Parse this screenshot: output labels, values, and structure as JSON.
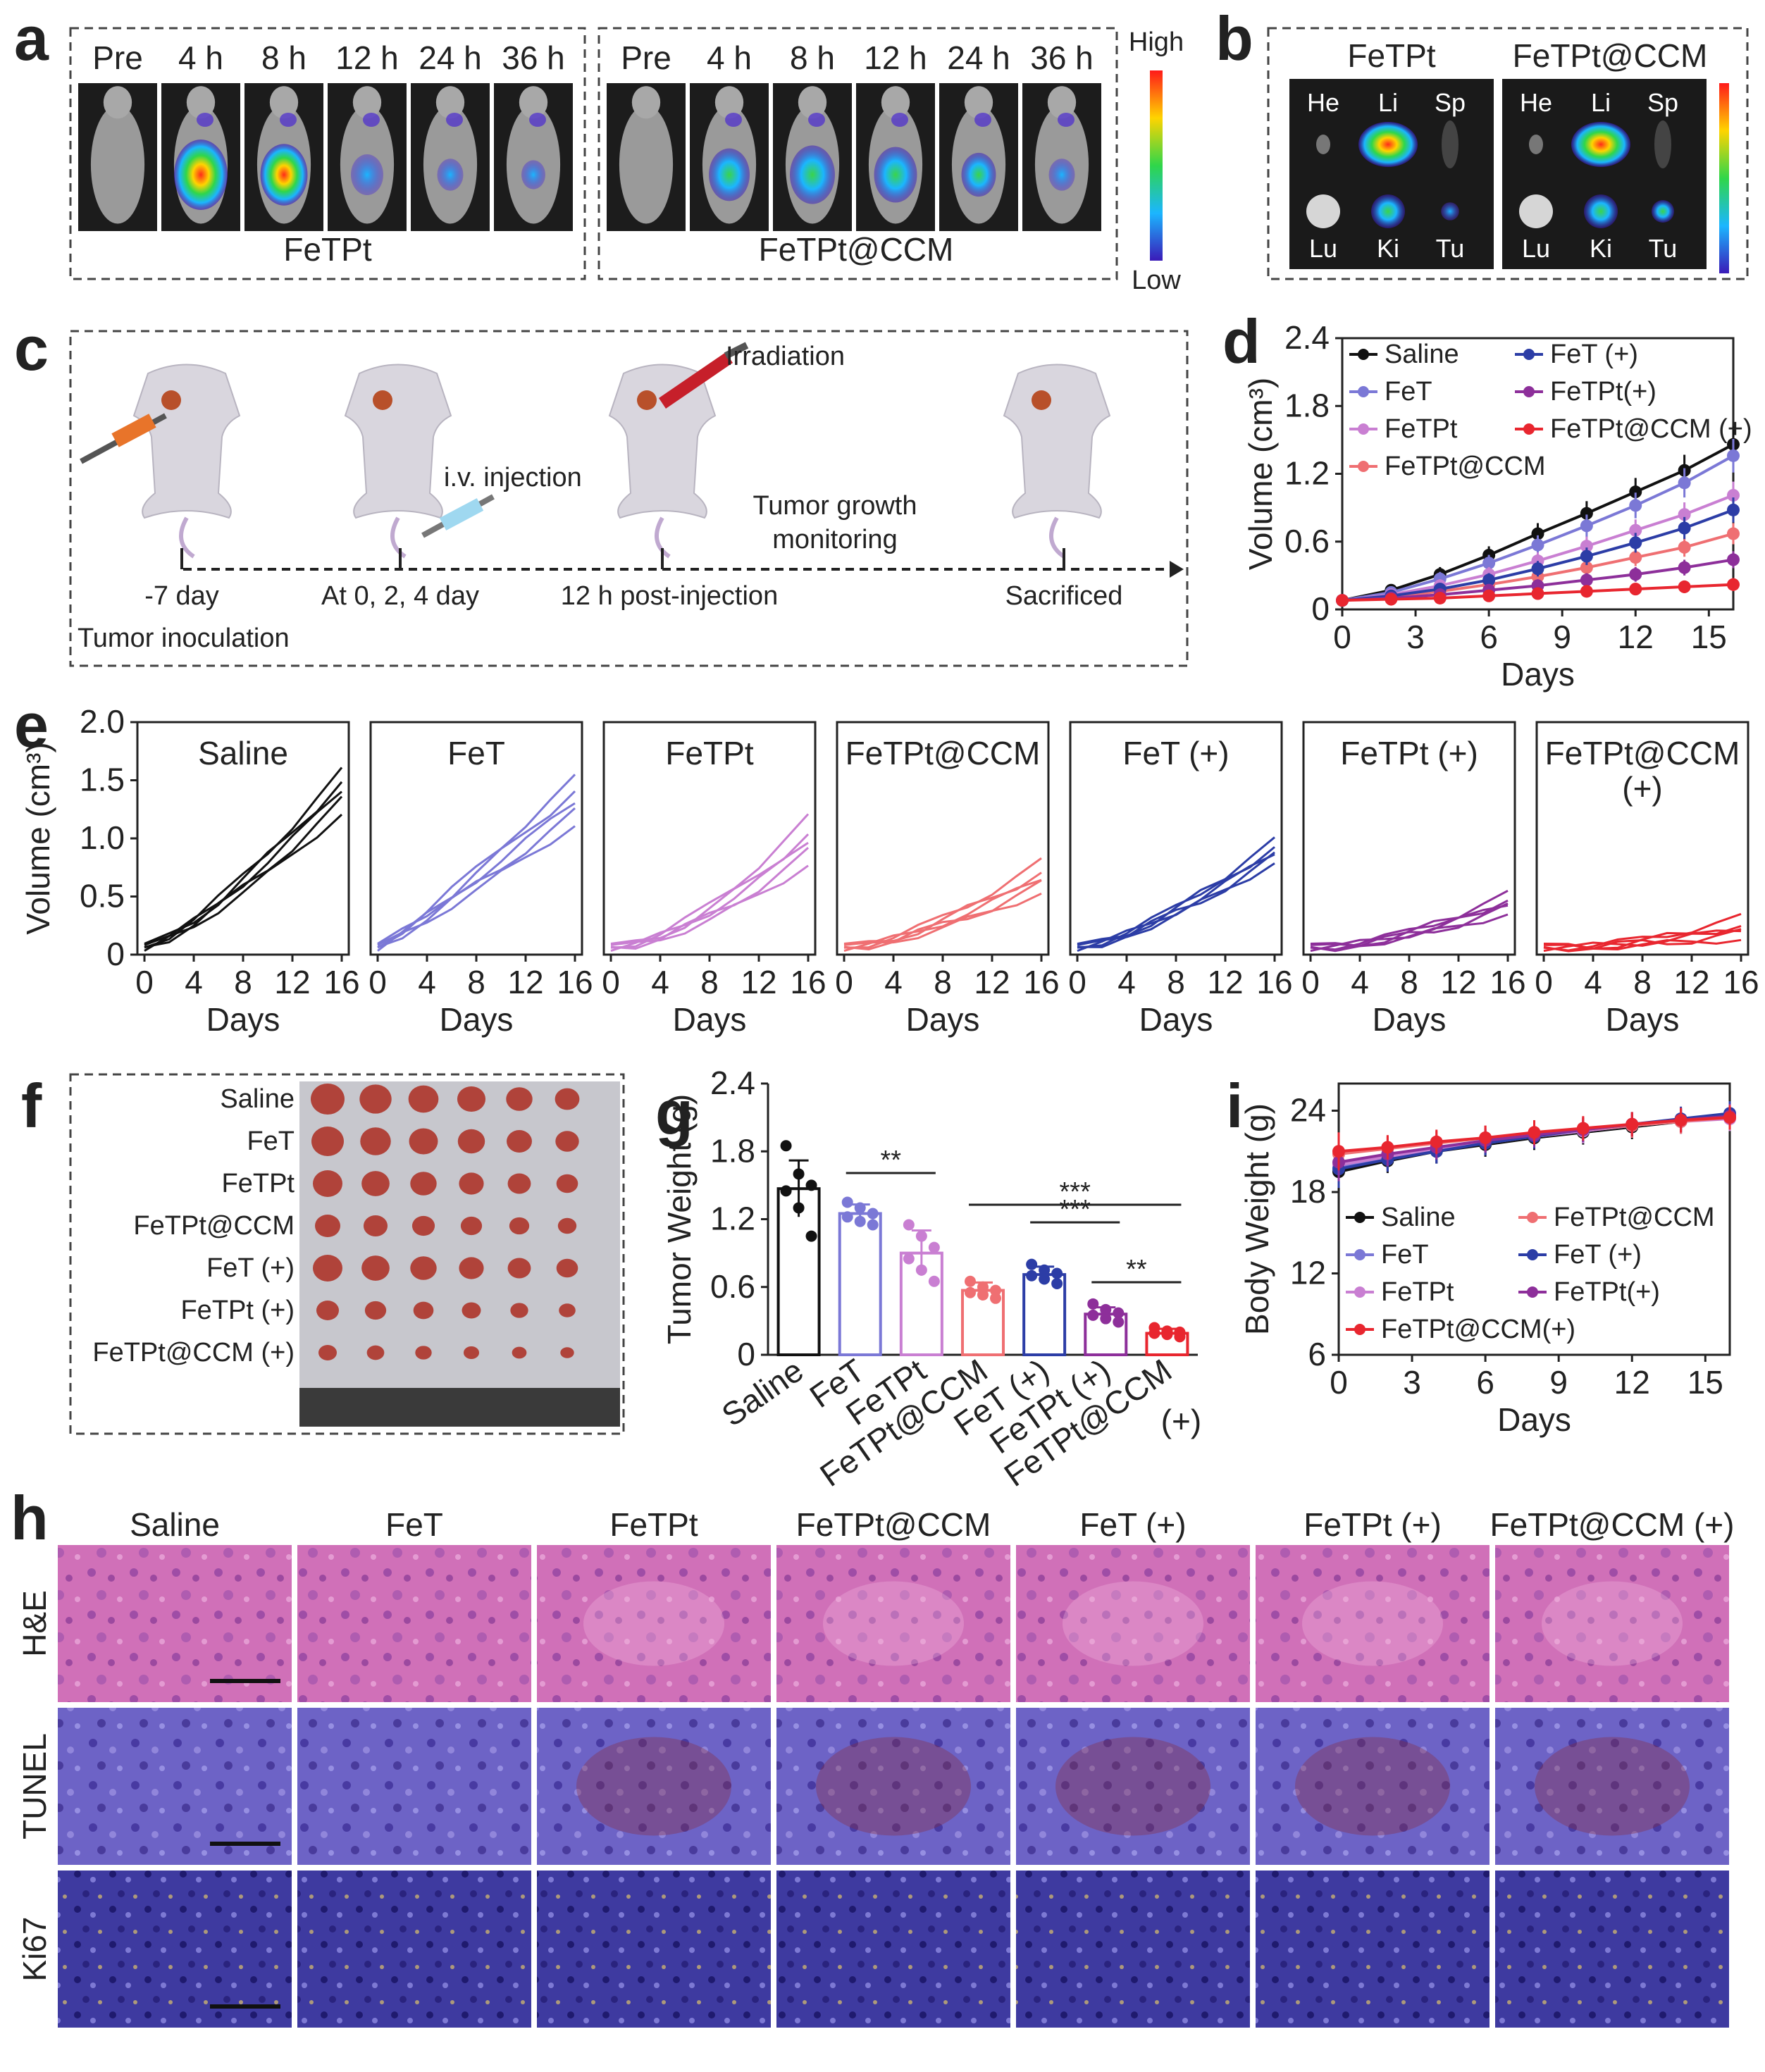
{
  "panel_letters": {
    "a": "a",
    "b": "b",
    "c": "c",
    "d": "d",
    "e": "e",
    "f": "f",
    "g": "g",
    "h": "h",
    "i": "i"
  },
  "panel_a": {
    "timepoints": [
      "Pre",
      "4 h",
      "8 h",
      "12 h",
      "24 h",
      "36 h"
    ],
    "group_left": "FeTPt",
    "group_right": "FeTPt@CCM",
    "scale_high": "High",
    "scale_low": "Low"
  },
  "panel_b": {
    "left_title": "FeTPt",
    "right_title": "FeTPt@CCM",
    "organs_top": [
      "He",
      "Li",
      "Sp"
    ],
    "organs_bottom": [
      "Lu",
      "Ki",
      "Tu"
    ]
  },
  "panel_c": {
    "irradiation": "Irradiation",
    "injection": "i.v. injection",
    "monitor_line1": "Tumor  growth",
    "monitor_line2": "monitoring",
    "timeline": [
      "-7 day",
      "At 0, 2, 4 day",
      "12 h post-injection",
      "Sacrificed"
    ],
    "inoculation": "Tumor  inoculation"
  },
  "panel_f": {
    "rows": [
      "Saline",
      "FeT",
      "FeTPt",
      "FeTPt@CCM",
      "FeT (+)",
      "FeTPt (+)",
      "FeTPt@CCM (+)"
    ]
  },
  "panel_h": {
    "columns": [
      "Saline",
      "FeT",
      "FeTPt",
      "FeTPt@CCM",
      "FeT (+)",
      "FeTPt (+)",
      "FeTPt@CCM (+)"
    ],
    "rows": [
      "H&E",
      "TUNEL",
      "Ki67"
    ]
  },
  "colors": {
    "saline": "#111111",
    "fet": "#7b78d6",
    "fetpt": "#c97fd2",
    "fetptccm": "#ef6f72",
    "fet_plus": "#2c3da6",
    "fetpt_plus": "#8d2f9a",
    "fetptccm_plus": "#e8262f"
  },
  "chart_data": [
    {
      "id": "d",
      "type": "line",
      "xlabel": "Days",
      "ylabel": "Volume (cm³)",
      "xlim": [
        0,
        16
      ],
      "ylim": [
        0,
        2.4
      ],
      "xticks": [
        "0",
        "3",
        "6",
        "9",
        "12",
        "15"
      ],
      "yticks": [
        "0",
        "0.6",
        "1.2",
        "1.8",
        "2.4"
      ],
      "x": [
        0,
        2,
        4,
        6,
        8,
        10,
        12,
        14,
        16
      ],
      "series": [
        {
          "name": "Saline",
          "marker": "circle",
          "color": "#111111",
          "values": [
            0.08,
            0.17,
            0.31,
            0.48,
            0.67,
            0.85,
            1.04,
            1.23,
            1.46
          ]
        },
        {
          "name": "FeT",
          "marker": "triangle",
          "color": "#7b78d6",
          "values": [
            0.08,
            0.15,
            0.27,
            0.41,
            0.57,
            0.74,
            0.92,
            1.12,
            1.36
          ]
        },
        {
          "name": "FeTPt",
          "marker": "triangle-down",
          "color": "#c97fd2",
          "values": [
            0.08,
            0.13,
            0.21,
            0.31,
            0.43,
            0.56,
            0.7,
            0.84,
            1.01
          ]
        },
        {
          "name": "FeTPt@CCM",
          "marker": "open-square",
          "color": "#ef6f72",
          "values": [
            0.08,
            0.11,
            0.16,
            0.22,
            0.29,
            0.37,
            0.46,
            0.55,
            0.67
          ]
        },
        {
          "name": "FeT (+)",
          "marker": "triangle",
          "color": "#2c3da6",
          "values": [
            0.08,
            0.12,
            0.18,
            0.26,
            0.36,
            0.47,
            0.59,
            0.72,
            0.88
          ]
        },
        {
          "name": "FeTPt(+)",
          "marker": "triangle-down",
          "color": "#8d2f9a",
          "values": [
            0.08,
            0.1,
            0.13,
            0.17,
            0.21,
            0.26,
            0.31,
            0.37,
            0.44
          ]
        },
        {
          "name": "FeTPt@CCM (+)",
          "marker": "square",
          "color": "#e8262f",
          "values": [
            0.08,
            0.09,
            0.1,
            0.12,
            0.14,
            0.16,
            0.18,
            0.2,
            0.22
          ]
        }
      ],
      "legend_labels": [
        "Saline",
        "FeT (+)",
        "FeT",
        "FeTPt(+)",
        "FeTPt",
        "FeTPt@CCM (+)",
        "FeTPt@CCM"
      ]
    },
    {
      "id": "e",
      "type": "line",
      "xlabel": "Days",
      "ylabel": "Volume (cm³)",
      "xlim": [
        0,
        16
      ],
      "ylim": [
        0,
        2.0
      ],
      "xticks": [
        "0",
        "4",
        "8",
        "12",
        "16"
      ],
      "yticks": [
        "0",
        "0.5",
        "1.0",
        "1.5",
        "2.0"
      ],
      "subplots": [
        {
          "title": [
            "Saline"
          ],
          "color": "#111111",
          "finals": [
            1.58,
            1.5,
            1.42,
            1.32,
            1.22
          ],
          "shape": 1.3
        },
        {
          "title": [
            "FeT"
          ],
          "color": "#7b78d6",
          "finals": [
            1.52,
            1.42,
            1.32,
            1.22,
            1.12
          ],
          "shape": 1.1
        },
        {
          "title": [
            "FeTPt"
          ],
          "color": "#c97fd2",
          "finals": [
            1.18,
            1.05,
            0.98,
            0.88,
            0.78
          ],
          "shape": 1.6
        },
        {
          "title": [
            "FeTPt@CCM"
          ],
          "color": "#ef6f72",
          "finals": [
            0.8,
            0.72,
            0.66,
            0.6,
            0.54
          ],
          "shape": 1.5
        },
        {
          "title": [
            "FeT (+)"
          ],
          "color": "#2c3da6",
          "finals": [
            0.98,
            0.94,
            0.88,
            0.84,
            0.8
          ],
          "shape": 1.4
        },
        {
          "title": [
            "FeTPt (+)"
          ],
          "color": "#8d2f9a",
          "finals": [
            0.52,
            0.48,
            0.44,
            0.4,
            0.36
          ],
          "shape": 1.7
        },
        {
          "title": [
            "FeTPt@CCM",
            "(+)"
          ],
          "color": "#e8262f",
          "finals": [
            0.32,
            0.26,
            0.22,
            0.18,
            0.14
          ],
          "shape": 1.8
        }
      ]
    },
    {
      "id": "g",
      "type": "bar",
      "ylabel": "Tumor Weight (g)",
      "ylim": [
        0,
        2.4
      ],
      "yticks": [
        "0",
        "0.6",
        "1.2",
        "1.8",
        "2.4"
      ],
      "categories": [
        "Saline",
        "FeT",
        "FeTPt",
        "FeTPt@CCM",
        "FeT (+)",
        "FeTPt (+)",
        "FeTPt@CCM"
      ],
      "last_category_line2": "(+)",
      "values": [
        1.47,
        1.25,
        0.9,
        0.57,
        0.71,
        0.36,
        0.19
      ],
      "errors": [
        0.25,
        0.08,
        0.2,
        0.07,
        0.07,
        0.06,
        0.04
      ],
      "points": [
        [
          1.85,
          1.6,
          1.5,
          1.45,
          1.3,
          1.05
        ],
        [
          1.35,
          1.3,
          1.25,
          1.22,
          1.18,
          1.15
        ],
        [
          1.15,
          1.05,
          0.95,
          0.85,
          0.75,
          0.65
        ],
        [
          0.65,
          0.6,
          0.57,
          0.55,
          0.53,
          0.5
        ],
        [
          0.8,
          0.75,
          0.72,
          0.7,
          0.67,
          0.63
        ],
        [
          0.45,
          0.4,
          0.37,
          0.35,
          0.32,
          0.29
        ],
        [
          0.24,
          0.21,
          0.2,
          0.19,
          0.18,
          0.16
        ]
      ],
      "colors": [
        "#111111",
        "#7b78d6",
        "#c97fd2",
        "#ef6f72",
        "#2c3da6",
        "#8d2f9a",
        "#e8262f"
      ],
      "significance": [
        {
          "from": 1,
          "to": 2,
          "label": "**"
        },
        {
          "from": 3,
          "to": 6,
          "label": "***"
        },
        {
          "from": 4,
          "to": 5,
          "label": "***"
        },
        {
          "from": 5,
          "to": 6,
          "label": "**"
        }
      ]
    },
    {
      "id": "i",
      "type": "line",
      "xlabel": "Days",
      "ylabel": "Body Weight (g)",
      "xlim": [
        0,
        16
      ],
      "ylim": [
        6,
        26
      ],
      "xticks": [
        "0",
        "3",
        "6",
        "9",
        "12",
        "15"
      ],
      "yticks": [
        "6",
        "12",
        "18",
        "24"
      ],
      "x": [
        0,
        2,
        4,
        6,
        8,
        10,
        12,
        14,
        16
      ],
      "series": [
        {
          "name": "Saline",
          "color": "#111111",
          "values": [
            19.5,
            20.3,
            21.0,
            21.5,
            22.0,
            22.4,
            22.8,
            23.2,
            23.5
          ]
        },
        {
          "name": "FeT",
          "color": "#7b78d6",
          "values": [
            19.8,
            20.5,
            21.1,
            21.6,
            22.1,
            22.5,
            22.9,
            23.3,
            23.6
          ]
        },
        {
          "name": "FeTPt",
          "color": "#c97fd2",
          "values": [
            20.0,
            20.6,
            21.2,
            21.7,
            22.1,
            22.5,
            22.9,
            23.2,
            23.4
          ]
        },
        {
          "name": "FeTPt@CCM",
          "color": "#ef6f72",
          "values": [
            20.8,
            21.2,
            21.6,
            22.0,
            22.3,
            22.6,
            22.9,
            23.2,
            23.5
          ]
        },
        {
          "name": "FeT (+)",
          "color": "#2c3da6",
          "values": [
            19.7,
            20.4,
            21.0,
            21.6,
            22.1,
            22.6,
            23.0,
            23.4,
            23.8
          ]
        },
        {
          "name": "FeTPt(+)",
          "color": "#8d2f9a",
          "values": [
            20.2,
            20.8,
            21.3,
            21.8,
            22.2,
            22.6,
            23.0,
            23.3,
            23.6
          ]
        },
        {
          "name": "FeTPt@CCM(+)",
          "color": "#e8262f",
          "values": [
            21.0,
            21.3,
            21.7,
            22.0,
            22.4,
            22.7,
            23.0,
            23.3,
            23.5
          ]
        }
      ],
      "legend_labels": [
        "Saline",
        "FeTPt@CCM",
        "FeT",
        "FeT (+)",
        "FeTPt",
        "FeTPt(+)",
        "FeTPt@CCM(+)"
      ]
    }
  ]
}
